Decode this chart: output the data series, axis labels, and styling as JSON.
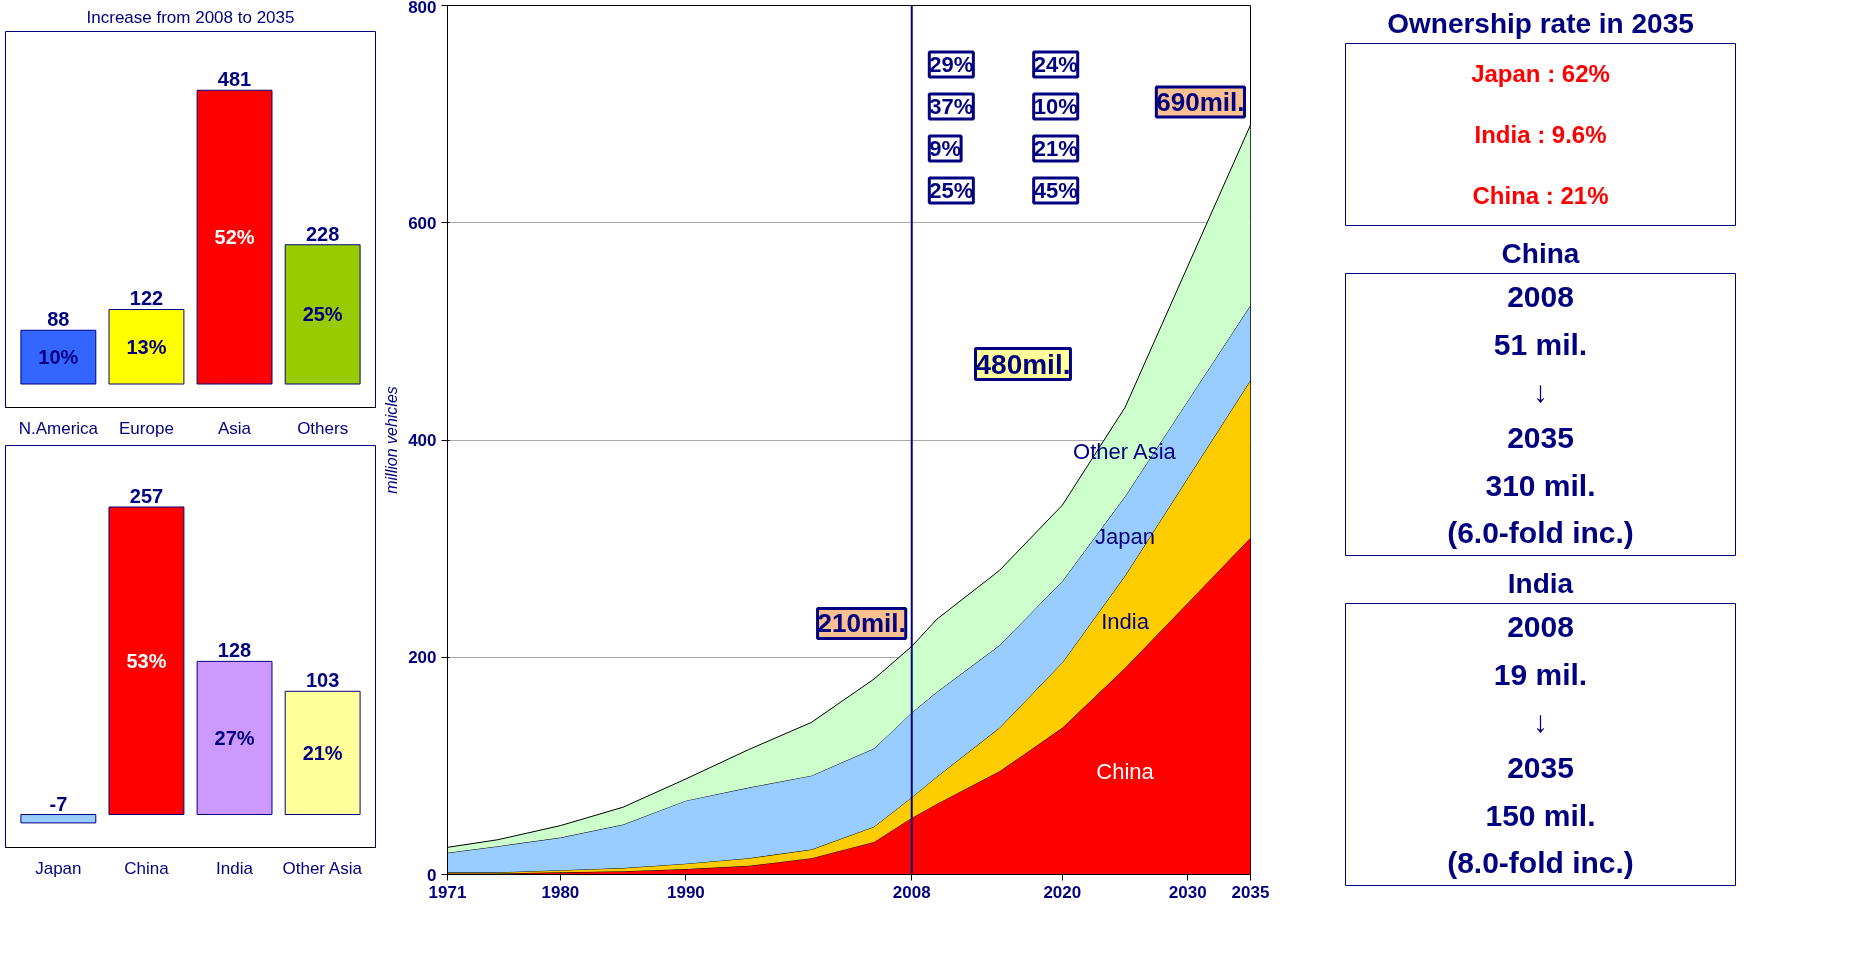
{
  "chart_data": [
    {
      "type": "area",
      "stacked": true,
      "ylabel": "million vehicles",
      "x": [
        1971,
        1975,
        1980,
        1985,
        1990,
        1995,
        2000,
        2005,
        2008,
        2010,
        2015,
        2020,
        2025,
        2030,
        2035
      ],
      "series": [
        {
          "name": "China",
          "color": "#ff0000",
          "values": [
            1,
            1,
            2,
            3,
            5,
            8,
            15,
            30,
            52,
            65,
            95,
            135,
            190,
            250,
            310
          ]
        },
        {
          "name": "India",
          "color": "#ffcc00",
          "values": [
            1,
            1,
            2,
            3,
            5,
            7,
            8,
            14,
            19,
            25,
            40,
            60,
            85,
            115,
            145
          ]
        },
        {
          "name": "Japan",
          "color": "#99ccff",
          "values": [
            18,
            24,
            30,
            40,
            58,
            65,
            68,
            72,
            78,
            78,
            76,
            75,
            73,
            71,
            69
          ]
        },
        {
          "name": "Other Asia",
          "color": "#ccffcc",
          "values": [
            5,
            6,
            11,
            16,
            20,
            35,
            49,
            64,
            61,
            67,
            69,
            70,
            82,
            124,
            166
          ]
        }
      ],
      "xlim": [
        1971,
        2035
      ],
      "xticks": [
        1971,
        1980,
        1990,
        2008,
        2020,
        2030,
        2035
      ],
      "ylim": [
        0,
        800
      ],
      "yticks": [
        0,
        200,
        400,
        600,
        800
      ],
      "grid": "y",
      "ref_lines": [
        {
          "axis": "x",
          "value": 2008,
          "color": "#000080"
        }
      ],
      "annotations": [
        "25%",
        "9%",
        "37%",
        "29%",
        "45%",
        "21%",
        "10%",
        "24%",
        {
          "text": "210mil.",
          "x": 2008,
          "y": 210
        },
        {
          "text": "690mil.",
          "x": 2035,
          "y": 690
        },
        "480mil."
      ]
    },
    {
      "type": "bar",
      "title": "Increase from 2008 to 2035",
      "categories": [
        "N.America",
        "Europe",
        "Asia",
        "Others"
      ],
      "values": [
        88,
        122,
        481,
        228
      ],
      "colors": [
        "#3366ff",
        "#ffff00",
        "#ff0000",
        "#99cc00"
      ],
      "data_labels": true,
      "tick_labels": "x",
      "annotations": [
        "10%",
        "13%",
        "52%",
        "25%"
      ]
    },
    {
      "type": "bar",
      "categories": [
        "Japan",
        "China",
        "India",
        "Other Asia"
      ],
      "values": [
        -7,
        257,
        128,
        103
      ],
      "colors": [
        "#99ccff",
        "#ff0000",
        "#cc99ff",
        "#ffff99"
      ],
      "data_labels": true,
      "tick_labels": "x",
      "annotations": [
        "53%",
        "27%",
        "21%"
      ]
    },
    {
      "type": "other",
      "title": "Ownership rate in 2035",
      "annotations": [
        "Japan : 62%",
        "India : 9.6%",
        "China : 21%"
      ]
    },
    {
      "type": "other",
      "title": "China",
      "annotations": [
        "2008",
        "51 mil.",
        "↓",
        "2035",
        "310 mil.",
        "(6.0-fold inc.)"
      ]
    },
    {
      "type": "other",
      "title": "India",
      "annotations": [
        "2008",
        "19 mil.",
        "↓",
        "2035",
        "150 mil.",
        "(8.0-fold inc.)"
      ]
    }
  ]
}
